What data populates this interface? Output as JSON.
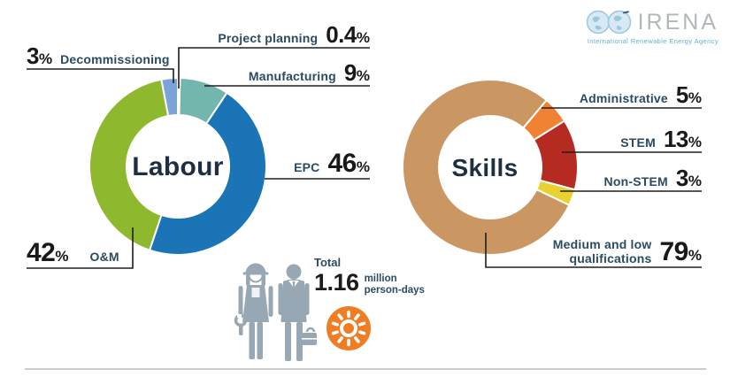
{
  "symbols": {
    "percent": "%"
  },
  "logo": {
    "acronym": "IRENA",
    "subtitle": "International Renewable Energy Agency"
  },
  "total": {
    "label": "Total",
    "value": "1.16",
    "unit_line1": "million",
    "unit_line2": "person-days"
  },
  "chart_data": [
    {
      "type": "pie",
      "donut": true,
      "title": "Labour",
      "unit": "%",
      "rotation_deg": 0,
      "legend_position": "callouts",
      "segments": [
        {
          "label": "Project planning",
          "value": 0.4,
          "color": "#3f73ab"
        },
        {
          "label": "Manufacturing",
          "value": 9,
          "color": "#72b6ad"
        },
        {
          "label": "EPC",
          "value": 46,
          "color": "#1a74b6"
        },
        {
          "label": "O&M",
          "value": 42,
          "color": "#8eb92e"
        },
        {
          "label": "Decommissioning",
          "value": 3,
          "color": "#7ba3d8"
        }
      ]
    },
    {
      "type": "pie",
      "donut": true,
      "title": "Skills",
      "unit": "%",
      "rotation_deg": 40,
      "legend_position": "callouts",
      "segments": [
        {
          "label": "Administrative",
          "value": 5,
          "color": "#f08233"
        },
        {
          "label": "STEM",
          "value": 13,
          "color": "#b52a21"
        },
        {
          "label": "Non-STEM",
          "value": 3,
          "color": "#e9d230"
        },
        {
          "label": "Medium and low qualifications",
          "value": 79,
          "color": "#ca9763"
        }
      ]
    }
  ]
}
